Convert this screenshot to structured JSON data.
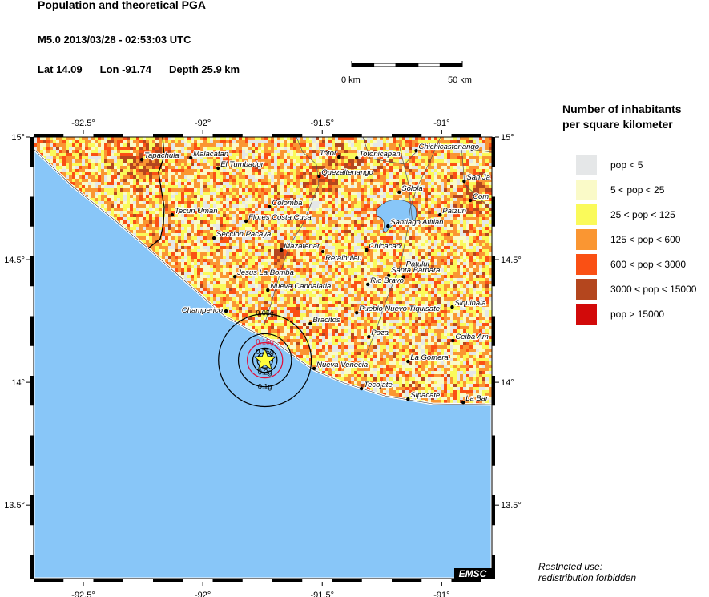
{
  "header": {
    "title": "Population and theoretical PGA",
    "event": "M5.0  2013/03/28 - 02:53:03 UTC",
    "lat": "Lat 14.09",
    "lon": "Lon -91.74",
    "depth": "Depth  25.9 km"
  },
  "scale_bar": {
    "start_label": "0 km",
    "end_label": "50 km",
    "length_km": 50
  },
  "map": {
    "extent": {
      "lon": [
        -92.708,
        -90.79
      ],
      "lat": [
        13.2,
        15.0
      ]
    },
    "lon_ticks": [
      {
        "v": -92.5,
        "label": "-92.5°"
      },
      {
        "v": -92,
        "label": "-92°"
      },
      {
        "v": -91.5,
        "label": "-91.5°"
      },
      {
        "v": -91,
        "label": "-91°"
      }
    ],
    "lat_ticks": [
      {
        "v": 15,
        "label": "15°"
      },
      {
        "v": 14.5,
        "label": "14.5°"
      },
      {
        "v": 14,
        "label": "14°"
      },
      {
        "v": 13.5,
        "label": "13.5°"
      }
    ],
    "water_color": "#88c6f8",
    "epicenter": {
      "lon": -91.74,
      "lat": 14.09,
      "icon": "star-icon",
      "color": "#ffff3c"
    },
    "pga_rings": [
      {
        "label": "0.05g",
        "radius_km": 21,
        "color": "#000000"
      },
      {
        "label": "0.1g",
        "radius_km": 12,
        "color": "#000000"
      },
      {
        "label": "0.15g",
        "radius_km": 8,
        "color": "#e0103c"
      },
      {
        "label": "0.2g",
        "radius_km": 5.5,
        "color": "#000000"
      },
      {
        "label": "0.25g",
        "radius_km": 3.5,
        "color": "#000000"
      }
    ],
    "cities": [
      {
        "name": "Tapachula",
        "lon": -92.255,
        "lat": 14.908
      },
      {
        "name": "Malacatan",
        "lon": -92.05,
        "lat": 14.915
      },
      {
        "name": "El Tumbador",
        "lon": -91.936,
        "lat": 14.873
      },
      {
        "name": "Tecun Uman",
        "lon": -92.128,
        "lat": 14.683
      },
      {
        "name": "Flores Costa Cuca",
        "lon": -91.819,
        "lat": 14.657
      },
      {
        "name": "Seccion Pacaya",
        "lon": -91.953,
        "lat": 14.588
      },
      {
        "name": "Colomba",
        "lon": -91.721,
        "lat": 14.716
      },
      {
        "name": "Mazatenar",
        "lon": -91.671,
        "lat": 14.539
      },
      {
        "name": "Retalhuleu",
        "lon": -91.497,
        "lat": 14.533
      },
      {
        "name": "Totor",
        "lon": -91.43,
        "lat": 14.918
      },
      {
        "name": "Totonicapan",
        "lon": -91.356,
        "lat": 14.915
      },
      {
        "name": "Chichicastenango",
        "lon": -91.107,
        "lat": 14.944
      },
      {
        "name": "Quezaltenango",
        "lon": -91.513,
        "lat": 14.84
      },
      {
        "name": "Solola",
        "lon": -91.178,
        "lat": 14.775
      },
      {
        "name": "San Ja",
        "lon": -90.906,
        "lat": 14.82
      },
      {
        "name": "Com",
        "lon": -90.88,
        "lat": 14.742
      },
      {
        "name": "Patzun",
        "lon": -91.007,
        "lat": 14.683
      },
      {
        "name": "Santiago Atitlan",
        "lon": -91.225,
        "lat": 14.637
      },
      {
        "name": "Chicacao",
        "lon": -91.315,
        "lat": 14.539
      },
      {
        "name": "Jesus La Bomba",
        "lon": -91.866,
        "lat": 14.431
      },
      {
        "name": "Nueva Candalaria",
        "lon": -91.728,
        "lat": 14.376
      },
      {
        "name": "Champerico",
        "lon": -91.903,
        "lat": 14.291
      },
      {
        "name": "Bracitos",
        "lon": -91.55,
        "lat": 14.239
      },
      {
        "name": "Santa Barbara",
        "lon": -91.222,
        "lat": 14.435
      },
      {
        "name": "Patulul",
        "lon": -91.16,
        "lat": 14.43
      },
      {
        "name": "Rio Bravo",
        "lon": -91.309,
        "lat": 14.399
      },
      {
        "name": "Pueblo Nuevo Tiquisate",
        "lon": -91.356,
        "lat": 14.284
      },
      {
        "name": "Siquinala",
        "lon": -90.956,
        "lat": 14.307
      },
      {
        "name": "Poza",
        "lon": -91.305,
        "lat": 14.186
      },
      {
        "name": "Ceiba Am",
        "lon": -90.953,
        "lat": 14.17
      },
      {
        "name": "La Gomera",
        "lon": -91.141,
        "lat": 14.085
      },
      {
        "name": "Nueva Venecia",
        "lon": -91.534,
        "lat": 14.056
      },
      {
        "name": "Tecojate",
        "lon": -91.336,
        "lat": 13.974
      },
      {
        "name": "Sipacate",
        "lon": -91.141,
        "lat": 13.931
      },
      {
        "name": "La Bar",
        "lon": -90.91,
        "lat": 13.918
      }
    ],
    "watermark": "EMSC"
  },
  "legend": {
    "title_line1": "Number of inhabitants",
    "title_line2": "per square kilometer",
    "items": [
      {
        "label": "pop < 5",
        "color": "#e5e7e8"
      },
      {
        "label": "5 < pop < 25",
        "color": "#fafac8"
      },
      {
        "label": "25 < pop < 125",
        "color": "#fafa5a"
      },
      {
        "label": "125 < pop < 600",
        "color": "#fa9632"
      },
      {
        "label": "600 < pop < 3000",
        "color": "#fa5014"
      },
      {
        "label": "3000 < pop < 15000",
        "color": "#b4461e"
      },
      {
        "label": "pop > 15000",
        "color": "#d20a0a"
      }
    ]
  },
  "note": {
    "line1": "Restricted use:",
    "line2": "redistribution forbidden"
  }
}
